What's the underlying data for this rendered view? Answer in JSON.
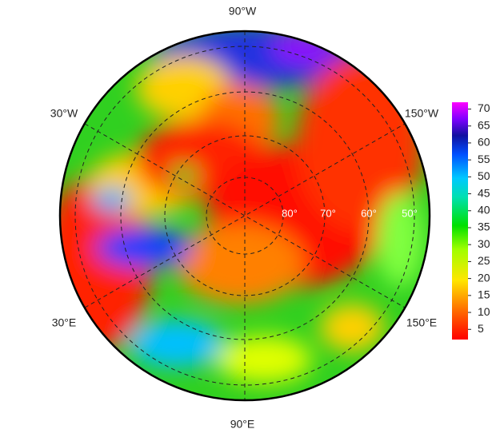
{
  "map": {
    "longitude_labels": [
      "90°W",
      "30°W",
      "150°W",
      "30°E",
      "150°E",
      "90°E"
    ],
    "latitude_labels": [
      "80°",
      "70°",
      "60°",
      "50°"
    ],
    "colorbar": {
      "range": [
        2,
        72
      ],
      "ticks": [
        5,
        10,
        15,
        20,
        25,
        30,
        35,
        40,
        45,
        50,
        55,
        60,
        65,
        70
      ]
    }
  }
}
